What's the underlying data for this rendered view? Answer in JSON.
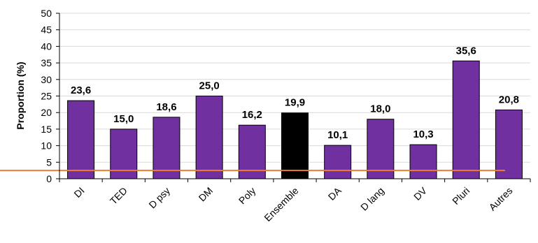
{
  "chart_data": {
    "type": "bar",
    "ylabel": "Proportion (%)",
    "ylim": [
      0,
      50
    ],
    "yticks": [
      0,
      5,
      10,
      15,
      20,
      25,
      30,
      35,
      40,
      45,
      50
    ],
    "categories": [
      "DI",
      "TED",
      "D psy",
      "DM",
      "Poly",
      "Ensemble",
      "DA",
      "D lang",
      "DV",
      "Pluri",
      "Autres"
    ],
    "values": [
      23.6,
      15.0,
      18.6,
      25.0,
      16.2,
      19.9,
      10.1,
      18.0,
      10.3,
      35.6,
      20.8
    ],
    "value_labels": [
      "23,6",
      "15,0",
      "18,6",
      "25,0",
      "16,2",
      "19,9",
      "10,1",
      "18,0",
      "10,3",
      "35,6",
      "20,8"
    ],
    "highlight_category": "Ensemble",
    "reference_line_value": 2.5,
    "grid": true,
    "colors": {
      "bar": "#7030a0",
      "highlight_bar": "#000000",
      "bar_outline": "#000000",
      "grid": "#d9d9d9",
      "reference_line": "#ed7d31"
    }
  }
}
